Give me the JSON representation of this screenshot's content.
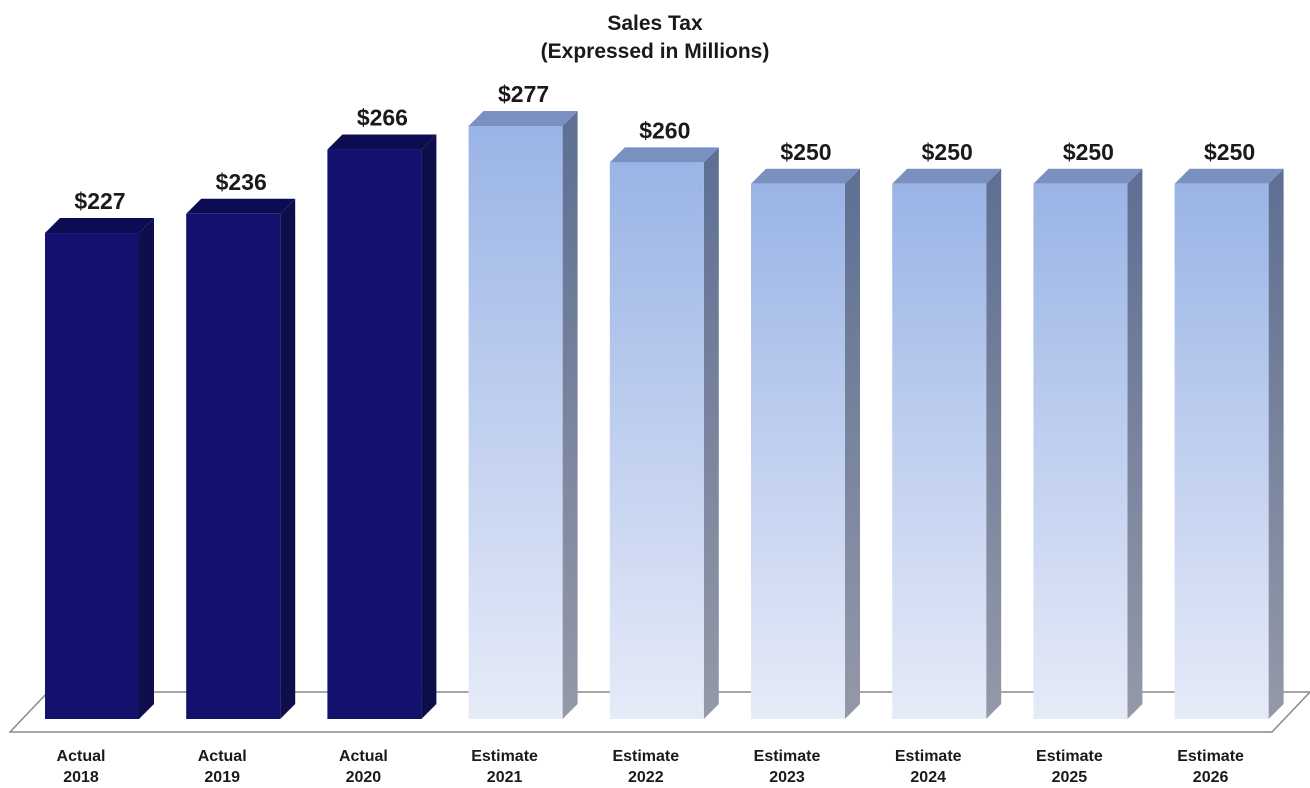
{
  "chart_data": {
    "type": "bar",
    "title": "Sales Tax",
    "subtitle": "(Expressed in Millions)",
    "categories": [
      [
        "Actual",
        "2018"
      ],
      [
        "Actual",
        "2019"
      ],
      [
        "Actual",
        "2020"
      ],
      [
        "Estimate",
        "2021"
      ],
      [
        "Estimate",
        "2022"
      ],
      [
        "Estimate",
        "2023"
      ],
      [
        "Estimate",
        "2024"
      ],
      [
        "Estimate",
        "2025"
      ],
      [
        "Estimate",
        "2026"
      ]
    ],
    "values": [
      227,
      236,
      266,
      277,
      260,
      250,
      250,
      250,
      250
    ],
    "value_labels": [
      "$227",
      "$236",
      "$266",
      "$277",
      "$260",
      "$250",
      "$250",
      "$250",
      "$250"
    ],
    "kinds": [
      "actual",
      "actual",
      "actual",
      "estimate",
      "estimate",
      "estimate",
      "estimate",
      "estimate",
      "estimate"
    ],
    "ylim": [
      0,
      277
    ],
    "grid": false,
    "legend": "none",
    "colors": {
      "actual_front": "#12126e",
      "actual_side": "#0e0e4a",
      "actual_top": "#0c0c52",
      "estimate_front_top": "#9ab4e6",
      "estimate_front_bottom": "#e6ebf8",
      "estimate_side_top": "#5e6f93",
      "estimate_side_bottom": "#9499a8",
      "estimate_top": "#7a90c0"
    }
  }
}
